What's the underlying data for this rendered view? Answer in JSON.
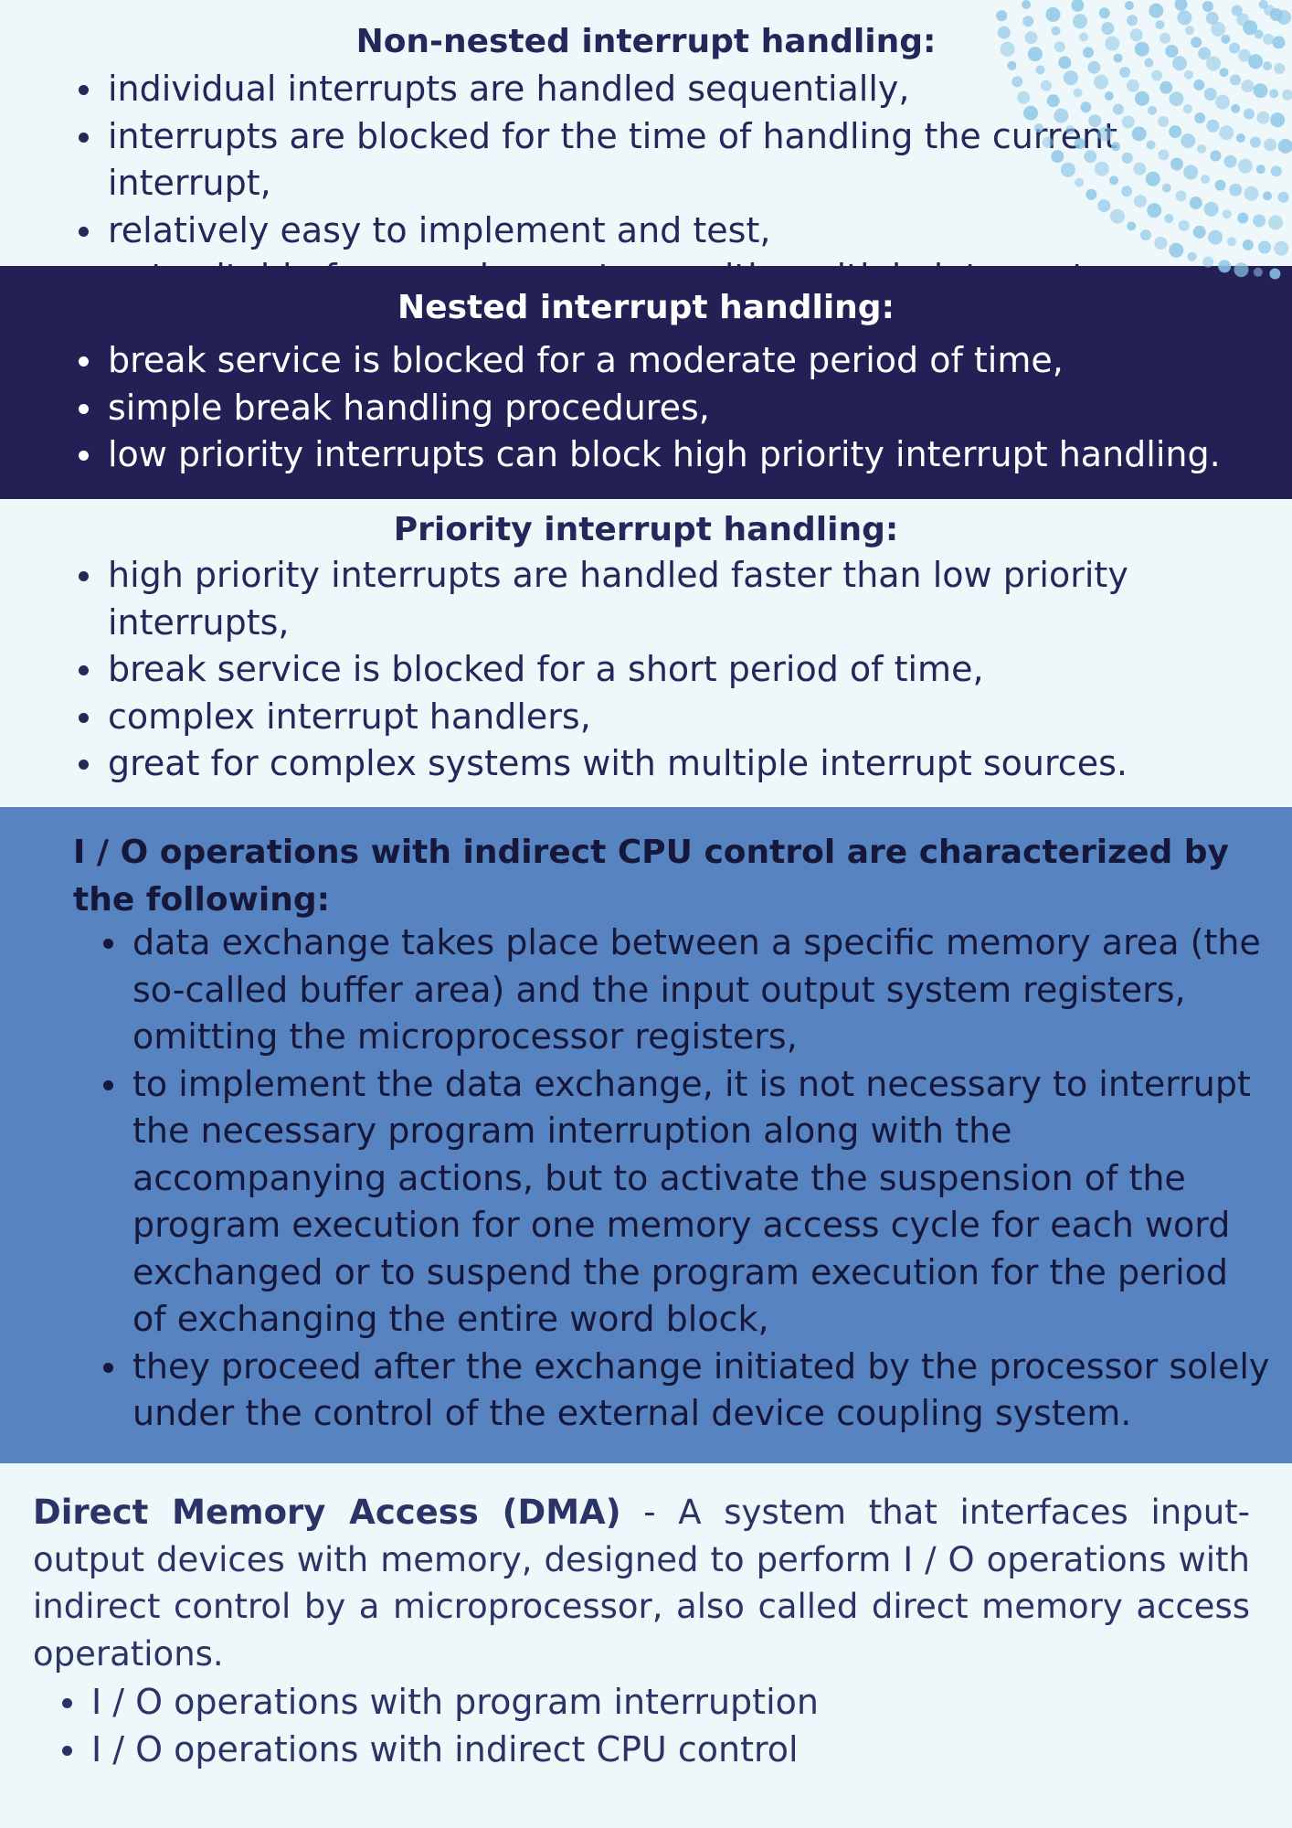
{
  "nonnested": {
    "title": "Non-nested interrupt handling:",
    "items": [
      "individual interrupts are handled sequentially,",
      "interrupts are blocked for the time of handling the current interrupt,",
      "relatively easy to implement and test,",
      "not suitable for complex systems with multiple interrupt sources"
    ]
  },
  "nested": {
    "title": "Nested interrupt handling:",
    "items": [
      "break service is blocked for a moderate period of time,",
      "simple break handling procedures,",
      "low priority interrupts can block high priority interrupt handling."
    ]
  },
  "priority": {
    "title": "Priority interrupt handling:",
    "items": [
      "high priority interrupts are handled faster than low priority interrupts,",
      "break service is blocked for a short period of time,",
      "complex interrupt handlers,",
      "great for complex systems with multiple interrupt sources."
    ]
  },
  "indirect": {
    "title": "I / O operations with indirect CPU control are characterized by the following:",
    "items": [
      "data exchange takes place between a specific memory area (the so-called buffer area) and the input output system registers, omitting the microprocessor registers,",
      "to implement the data exchange, it is not necessary to interrupt the necessary program interruption along with the accompanying actions, but to activate the suspension of the program execution for one memory access cycle for each word exchanged or to suspend the program execution for the period of exchanging the entire word block,",
      "they proceed after the exchange initiated by the processor solely under the control of the external device coupling system."
    ]
  },
  "dma": {
    "term": "Direct Memory Access (DMA)",
    "definition": " - A system that interfaces input-output devices with memory, designed to perform I / O operations with indirect control by a microprocessor, also called direct memory access operations.",
    "items": [
      "I / O operations with program interruption",
      "I / O operations with indirect CPU control"
    ]
  },
  "colors": {
    "light_bg": "#eef7f9",
    "dark_navy": "#232055",
    "mid_blue": "#5783c0",
    "text_navy": "#23285a",
    "dot_blue": "#8ec8e8"
  },
  "decoration": "dot-pattern"
}
